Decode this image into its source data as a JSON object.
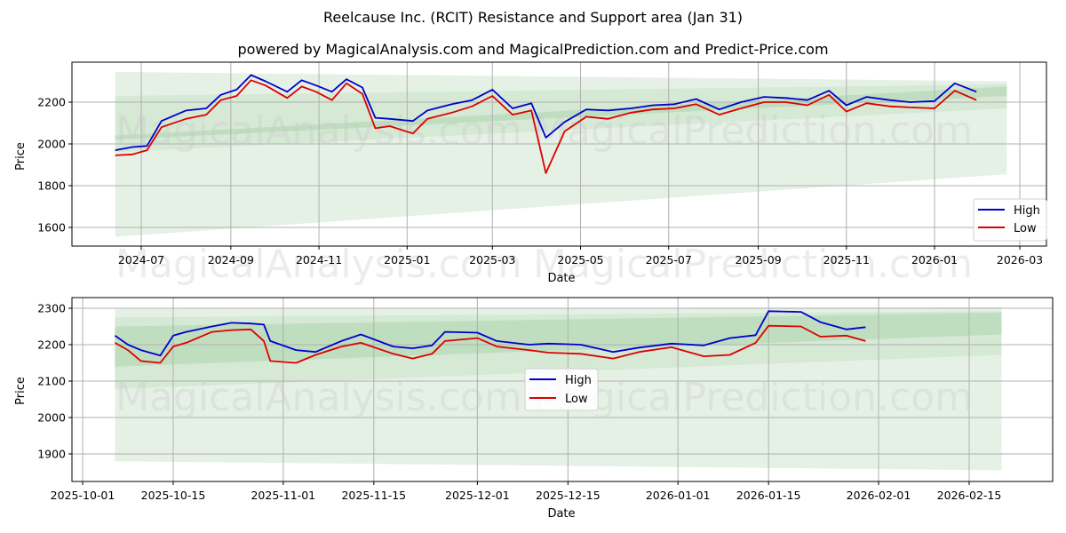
{
  "title": "Reelcause Inc. (RCIT) Resistance and Support area (Jan 31)",
  "subtitle": "powered by MagicalAnalysis.com and MagicalPrediction.com and Predict-Price.com",
  "watermarks": [
    "MagicalAnalysis.com",
    "MagicalPrediction.com"
  ],
  "colors": {
    "high": "#0000cc",
    "low": "#dd0000",
    "band_light": "#e3efe3",
    "band_mid": "#cfe6cf",
    "band_dark": "#b5d9b5",
    "grid": "#b0b0b0"
  },
  "legend": {
    "high_label": "High",
    "low_label": "Low"
  },
  "top_chart": {
    "xlabel": "Date",
    "ylabel": "Price",
    "yticks": [
      "1600",
      "1800",
      "2000",
      "2200"
    ],
    "xticks": [
      "2024-07",
      "2024-09",
      "2024-11",
      "2025-01",
      "2025-03",
      "2025-05",
      "2025-07",
      "2025-09",
      "2025-11",
      "2026-01",
      "2026-03"
    ]
  },
  "bottom_chart": {
    "xlabel": "Date",
    "ylabel": "Price",
    "yticks": [
      "1900",
      "2000",
      "2100",
      "2200",
      "2300"
    ],
    "xticks": [
      "2025-10-01",
      "2025-10-15",
      "2025-11-01",
      "2025-11-15",
      "2025-12-01",
      "2025-12-15",
      "2026-01-01",
      "2026-01-15",
      "2026-02-01",
      "2026-02-15"
    ]
  },
  "chart_data": [
    {
      "type": "line",
      "title": "Reelcause Inc. (RCIT) Resistance and Support area (Jan 31)",
      "xlabel": "Date",
      "ylabel": "Price",
      "ylim": [
        1510,
        2380
      ],
      "xlim": [
        "2024-05-01",
        "2026-03-25"
      ],
      "grid": true,
      "legend_position": "lower right",
      "x": [
        "2024-06-13",
        "2024-06-25",
        "2024-07-05",
        "2024-07-15",
        "2024-08-01",
        "2024-08-15",
        "2024-08-25",
        "2024-09-05",
        "2024-09-15",
        "2024-09-25",
        "2024-10-10",
        "2024-10-20",
        "2024-10-30",
        "2024-11-10",
        "2024-11-20",
        "2024-12-01",
        "2024-12-10",
        "2024-12-20",
        "2025-01-05",
        "2025-01-15",
        "2025-02-01",
        "2025-02-15",
        "2025-03-01",
        "2025-03-15",
        "2025-03-28",
        "2025-04-07",
        "2025-04-20",
        "2025-05-05",
        "2025-05-20",
        "2025-06-05",
        "2025-06-20",
        "2025-07-05",
        "2025-07-20",
        "2025-08-05",
        "2025-08-20",
        "2025-09-05",
        "2025-09-20",
        "2025-10-05",
        "2025-10-20",
        "2025-11-01",
        "2025-11-15",
        "2025-12-01",
        "2025-12-15",
        "2026-01-01",
        "2026-01-15",
        "2026-01-30"
      ],
      "series": [
        {
          "name": "High",
          "values": [
            1970,
            1985,
            1990,
            2110,
            2160,
            2170,
            2235,
            2260,
            2330,
            2300,
            2250,
            2305,
            2280,
            2250,
            2310,
            2270,
            2125,
            2120,
            2110,
            2160,
            2190,
            2210,
            2260,
            2170,
            2195,
            2030,
            2105,
            2165,
            2160,
            2170,
            2185,
            2190,
            2215,
            2165,
            2200,
            2225,
            2220,
            2210,
            2255,
            2185,
            2225,
            2210,
            2200,
            2205,
            2290,
            2250
          ]
        },
        {
          "name": "Low",
          "values": [
            1945,
            1950,
            1970,
            2080,
            2120,
            2140,
            2210,
            2230,
            2305,
            2280,
            2220,
            2275,
            2250,
            2210,
            2290,
            2240,
            2075,
            2085,
            2050,
            2120,
            2150,
            2180,
            2230,
            2140,
            2160,
            1860,
            2060,
            2130,
            2120,
            2150,
            2165,
            2170,
            2190,
            2140,
            2170,
            2200,
            2200,
            2185,
            2235,
            2155,
            2195,
            2180,
            2175,
            2170,
            2255,
            2210
          ]
        }
      ],
      "bands": [
        {
          "name": "outer",
          "start": [
            2345,
            1555
          ],
          "end": [
            2300,
            1855
          ]
        },
        {
          "name": "middle",
          "start": [
            2230,
            1960
          ],
          "end": [
            2285,
            2170
          ]
        },
        {
          "name": "inner",
          "start": [
            2040,
            2020
          ],
          "end": [
            2275,
            2230
          ]
        }
      ]
    },
    {
      "type": "line",
      "title": "",
      "xlabel": "Date",
      "ylabel": "Price",
      "ylim": [
        1830,
        2330
      ],
      "xlim": [
        "2025-09-28",
        "2026-02-28"
      ],
      "grid": true,
      "legend_position": "center",
      "x": [
        "2025-10-06",
        "2025-10-08",
        "2025-10-10",
        "2025-10-13",
        "2025-10-15",
        "2025-10-17",
        "2025-10-21",
        "2025-10-24",
        "2025-10-27",
        "2025-10-29",
        "2025-10-30",
        "2025-11-03",
        "2025-11-06",
        "2025-11-10",
        "2025-11-13",
        "2025-11-18",
        "2025-11-21",
        "2025-11-24",
        "2025-11-26",
        "2025-12-01",
        "2025-12-04",
        "2025-12-09",
        "2025-12-12",
        "2025-12-17",
        "2025-12-22",
        "2025-12-26",
        "2025-12-31",
        "2026-01-05",
        "2026-01-09",
        "2026-01-13",
        "2026-01-15",
        "2026-01-20",
        "2026-01-23",
        "2026-01-27",
        "2026-01-30"
      ],
      "series": [
        {
          "name": "High",
          "values": [
            2225,
            2200,
            2185,
            2170,
            2225,
            2235,
            2250,
            2260,
            2258,
            2255,
            2210,
            2185,
            2180,
            2210,
            2228,
            2195,
            2190,
            2198,
            2235,
            2233,
            2210,
            2200,
            2203,
            2200,
            2180,
            2192,
            2203,
            2198,
            2218,
            2226,
            2292,
            2290,
            2262,
            2242,
            2248
          ]
        },
        {
          "name": "Low",
          "values": [
            2205,
            2185,
            2155,
            2150,
            2195,
            2205,
            2235,
            2240,
            2242,
            2210,
            2155,
            2150,
            2172,
            2195,
            2205,
            2175,
            2162,
            2175,
            2210,
            2218,
            2195,
            2185,
            2178,
            2175,
            2162,
            2180,
            2193,
            2168,
            2172,
            2205,
            2252,
            2250,
            2222,
            2225,
            2210
          ]
        }
      ],
      "bands": [
        {
          "name": "outer",
          "start": [
            2298,
            1880
          ],
          "end": [
            2303,
            1855
          ]
        },
        {
          "name": "middle",
          "start": [
            2275,
            2078
          ],
          "end": [
            2292,
            2172
          ]
        },
        {
          "name": "inner",
          "start": [
            2250,
            2140
          ],
          "end": [
            2288,
            2228
          ]
        }
      ]
    }
  ]
}
